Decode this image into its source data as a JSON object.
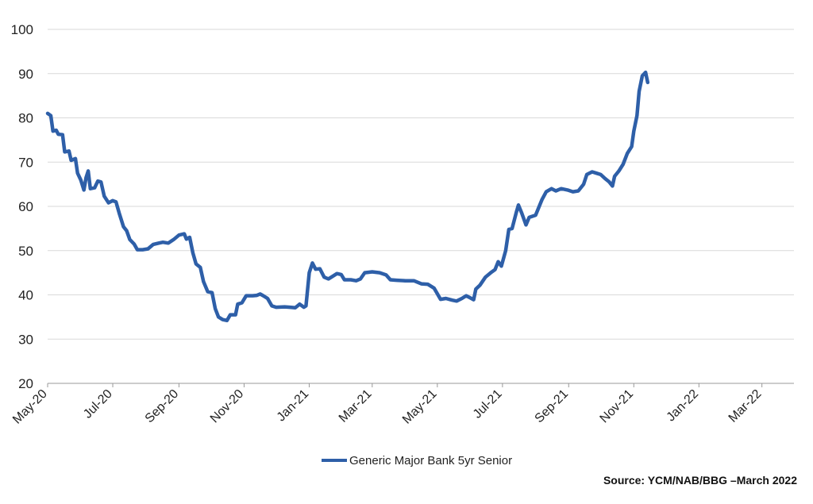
{
  "chart_data": {
    "type": "line",
    "title": "",
    "xlabel": "",
    "ylabel": "",
    "ylim": [
      20,
      100
    ],
    "y_ticks": [
      20,
      30,
      40,
      50,
      60,
      70,
      80,
      90,
      100
    ],
    "x_range": [
      "2020-05-01",
      "2022-03-31"
    ],
    "x_tick_labels": [
      "May-20",
      "Jul-20",
      "Sep-20",
      "Nov-20",
      "Jan-21",
      "Mar-21",
      "May-21",
      "Jul-21",
      "Sep-21",
      "Nov-21",
      "Jan-22",
      "Mar-22"
    ],
    "x_tick_dates": [
      "2020-05-01",
      "2020-07-01",
      "2020-09-01",
      "2020-11-01",
      "2021-01-01",
      "2021-03-01",
      "2021-05-01",
      "2021-07-01",
      "2021-09-01",
      "2021-11-01",
      "2022-01-01",
      "2022-03-01"
    ],
    "grid": "horizontal",
    "legend_position": "bottom-center",
    "source": "Source: YCM/NAB/BBG –March 2022",
    "series": [
      {
        "name": "Generic Major Bank 5yr Senior",
        "color": "#2e5fa8",
        "points": [
          [
            "2020-05-01",
            81
          ],
          [
            "2020-05-04",
            80.5
          ],
          [
            "2020-05-06",
            77
          ],
          [
            "2020-05-09",
            77.2
          ],
          [
            "2020-05-11",
            76.3
          ],
          [
            "2020-05-15",
            76.2
          ],
          [
            "2020-05-17",
            72.3
          ],
          [
            "2020-05-21",
            72.5
          ],
          [
            "2020-05-23",
            70.4
          ],
          [
            "2020-05-27",
            70.8
          ],
          [
            "2020-05-29",
            67.5
          ],
          [
            "2020-06-01",
            66
          ],
          [
            "2020-06-04",
            63.7
          ],
          [
            "2020-06-06",
            66.5
          ],
          [
            "2020-06-08",
            68
          ],
          [
            "2020-06-10",
            64
          ],
          [
            "2020-06-14",
            64.2
          ],
          [
            "2020-06-17",
            65.7
          ],
          [
            "2020-06-20",
            65.5
          ],
          [
            "2020-06-23",
            62.3
          ],
          [
            "2020-06-27",
            60.8
          ],
          [
            "2020-07-01",
            61.3
          ],
          [
            "2020-07-04",
            61
          ],
          [
            "2020-07-07",
            58.5
          ],
          [
            "2020-07-11",
            55.4
          ],
          [
            "2020-07-14",
            54.5
          ],
          [
            "2020-07-17",
            52.5
          ],
          [
            "2020-07-21",
            51.5
          ],
          [
            "2020-07-24",
            50.2
          ],
          [
            "2020-07-29",
            50.2
          ],
          [
            "2020-08-03",
            50.4
          ],
          [
            "2020-08-08",
            51.4
          ],
          [
            "2020-08-13",
            51.7
          ],
          [
            "2020-08-17",
            51.9
          ],
          [
            "2020-08-22",
            51.7
          ],
          [
            "2020-08-27",
            52.5
          ],
          [
            "2020-09-01",
            53.5
          ],
          [
            "2020-09-06",
            53.8
          ],
          [
            "2020-09-08",
            52.6
          ],
          [
            "2020-09-11",
            53
          ],
          [
            "2020-09-14",
            49.5
          ],
          [
            "2020-09-17",
            47
          ],
          [
            "2020-09-21",
            46.2
          ],
          [
            "2020-09-24",
            43
          ],
          [
            "2020-09-28",
            40.7
          ],
          [
            "2020-10-02",
            40.5
          ],
          [
            "2020-10-05",
            36.9
          ],
          [
            "2020-10-08",
            35
          ],
          [
            "2020-10-12",
            34.4
          ],
          [
            "2020-10-16",
            34.2
          ],
          [
            "2020-10-19",
            35.5
          ],
          [
            "2020-10-24",
            35.5
          ],
          [
            "2020-10-26",
            37.9
          ],
          [
            "2020-10-30",
            38.2
          ],
          [
            "2020-11-03",
            39.8
          ],
          [
            "2020-11-09",
            39.8
          ],
          [
            "2020-11-13",
            39.9
          ],
          [
            "2020-11-16",
            40.2
          ],
          [
            "2020-11-19",
            39.8
          ],
          [
            "2020-11-23",
            39.2
          ],
          [
            "2020-11-27",
            37.5
          ],
          [
            "2020-12-01",
            37.2
          ],
          [
            "2020-12-09",
            37.3
          ],
          [
            "2020-12-14",
            37.2
          ],
          [
            "2020-12-19",
            37.1
          ],
          [
            "2020-12-23",
            37.9
          ],
          [
            "2020-12-27",
            37.2
          ],
          [
            "2020-12-29",
            37.5
          ],
          [
            "2021-01-01",
            45
          ],
          [
            "2021-01-04",
            47.2
          ],
          [
            "2021-01-07",
            45.8
          ],
          [
            "2021-01-11",
            45.9
          ],
          [
            "2021-01-15",
            44
          ],
          [
            "2021-01-19",
            43.6
          ],
          [
            "2021-01-23",
            44.2
          ],
          [
            "2021-01-27",
            44.8
          ],
          [
            "2021-01-31",
            44.6
          ],
          [
            "2021-02-03",
            43.4
          ],
          [
            "2021-02-09",
            43.4
          ],
          [
            "2021-02-14",
            43.2
          ],
          [
            "2021-02-18",
            43.6
          ],
          [
            "2021-02-22",
            45
          ],
          [
            "2021-03-01",
            45.2
          ],
          [
            "2021-03-08",
            45
          ],
          [
            "2021-03-14",
            44.5
          ],
          [
            "2021-03-18",
            43.4
          ],
          [
            "2021-03-24",
            43.3
          ],
          [
            "2021-04-01",
            43.2
          ],
          [
            "2021-04-09",
            43.2
          ],
          [
            "2021-04-16",
            42.5
          ],
          [
            "2021-04-22",
            42.4
          ],
          [
            "2021-04-28",
            41.5
          ],
          [
            "2021-05-04",
            39
          ],
          [
            "2021-05-09",
            39.2
          ],
          [
            "2021-05-15",
            38.8
          ],
          [
            "2021-05-19",
            38.6
          ],
          [
            "2021-05-24",
            39.2
          ],
          [
            "2021-05-28",
            39.8
          ],
          [
            "2021-06-01",
            39.3
          ],
          [
            "2021-06-04",
            38.9
          ],
          [
            "2021-06-06",
            41.3
          ],
          [
            "2021-06-10",
            42.2
          ],
          [
            "2021-06-15",
            44
          ],
          [
            "2021-06-20",
            45
          ],
          [
            "2021-06-24",
            45.7
          ],
          [
            "2021-06-27",
            47.5
          ],
          [
            "2021-06-30",
            46.5
          ],
          [
            "2021-07-04",
            50
          ],
          [
            "2021-07-07",
            54.8
          ],
          [
            "2021-07-10",
            55
          ],
          [
            "2021-07-14",
            58.7
          ],
          [
            "2021-07-16",
            60.3
          ],
          [
            "2021-07-19",
            58.5
          ],
          [
            "2021-07-23",
            55.8
          ],
          [
            "2021-07-26",
            57.5
          ],
          [
            "2021-08-01",
            58
          ],
          [
            "2021-08-07",
            61.5
          ],
          [
            "2021-08-11",
            63.3
          ],
          [
            "2021-08-16",
            64
          ],
          [
            "2021-08-20",
            63.5
          ],
          [
            "2021-08-25",
            64
          ],
          [
            "2021-08-31",
            63.7
          ],
          [
            "2021-09-05",
            63.3
          ],
          [
            "2021-09-10",
            63.5
          ],
          [
            "2021-09-15",
            65
          ],
          [
            "2021-09-18",
            67.2
          ],
          [
            "2021-09-23",
            67.8
          ],
          [
            "2021-09-27",
            67.5
          ],
          [
            "2021-10-01",
            67.2
          ],
          [
            "2021-10-05",
            66.3
          ],
          [
            "2021-10-09",
            65.5
          ],
          [
            "2021-10-12",
            64.6
          ],
          [
            "2021-10-14",
            66.8
          ],
          [
            "2021-10-18",
            68
          ],
          [
            "2021-10-22",
            69.5
          ],
          [
            "2021-10-26",
            72
          ],
          [
            "2021-10-30",
            73.5
          ],
          [
            "2021-11-01",
            77
          ],
          [
            "2021-11-04",
            80.5
          ],
          [
            "2021-11-06",
            86
          ],
          [
            "2021-11-09",
            89.5
          ],
          [
            "2021-11-12",
            90.3
          ],
          [
            "2021-11-14",
            88
          ]
        ]
      }
    ]
  }
}
